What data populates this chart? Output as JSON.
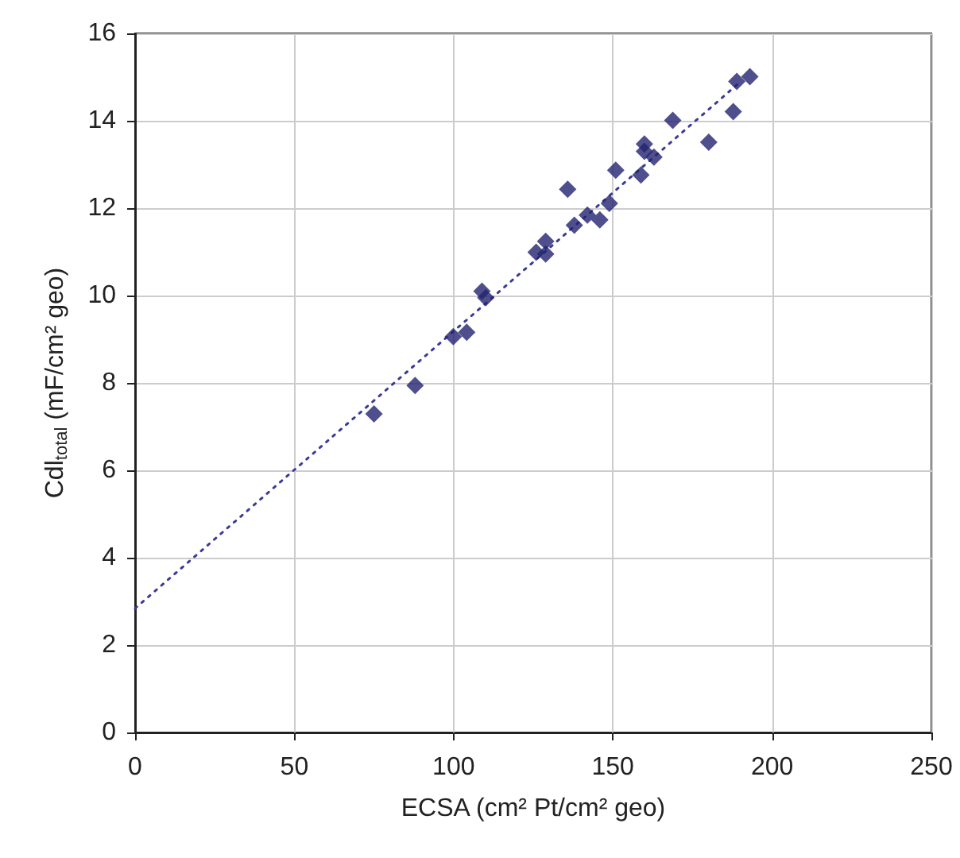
{
  "chart_data": {
    "type": "scatter",
    "xlabel": "ECSA (cm² Pt/cm² geo)",
    "ylabel": "Cdl$_{total}$ (mF/cm² geo)",
    "xlim": [
      0,
      250
    ],
    "xticks": [
      0,
      50,
      100,
      150,
      200,
      250
    ],
    "ylim": [
      0,
      16
    ],
    "yticks": [
      0,
      2,
      4,
      6,
      8,
      10,
      12,
      14,
      16
    ],
    "grid": true,
    "marker": "diamond",
    "series": [
      {
        "color": "#232370",
        "x": [
          75.0,
          87.9,
          99.9,
          104.1,
          108.9,
          110.1,
          125.9,
          128.9,
          128.9,
          135.8,
          137.9,
          142.0,
          145.9,
          148.9,
          150.9,
          158.8,
          159.9,
          159.9,
          162.9,
          168.8,
          180.1,
          187.8,
          188.9,
          193.0
        ],
        "values": [
          7.29,
          7.94,
          9.06,
          9.16,
          10.1,
          9.95,
          10.99,
          11.24,
          10.95,
          12.43,
          11.61,
          11.84,
          11.73,
          12.11,
          12.87,
          12.76,
          13.47,
          13.3,
          13.17,
          14.01,
          13.51,
          14.21,
          14.9,
          15.01
        ]
      },
      {
        "type": "line",
        "color": "#3a3a9a",
        "x": [
          0,
          190
        ],
        "values": [
          2.84,
          14.89
        ],
        "marker": "none",
        "line_style": "dotted"
      }
    ]
  }
}
